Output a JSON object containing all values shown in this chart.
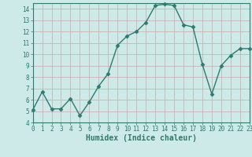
{
  "x": [
    0,
    1,
    2,
    3,
    4,
    5,
    6,
    7,
    8,
    9,
    10,
    11,
    12,
    13,
    14,
    15,
    16,
    17,
    18,
    19,
    20,
    21,
    22,
    23
  ],
  "y": [
    5.1,
    6.7,
    5.2,
    5.2,
    6.1,
    4.6,
    5.8,
    7.2,
    8.3,
    10.8,
    11.6,
    12.0,
    12.8,
    14.3,
    14.4,
    14.3,
    12.6,
    12.4,
    9.1,
    6.5,
    9.0,
    9.9,
    10.5,
    10.5
  ],
  "xlabel": "Humidex (Indice chaleur)",
  "line_color": "#2d7a6e",
  "bg_color": "#ceeae8",
  "grid_major_color": "#c8a8a8",
  "grid_minor_color": "#d8b8b8",
  "xlim": [
    0,
    23
  ],
  "ylim": [
    4,
    14.5
  ],
  "yticks": [
    4,
    5,
    6,
    7,
    8,
    9,
    10,
    11,
    12,
    13,
    14
  ],
  "xticks": [
    0,
    1,
    2,
    3,
    4,
    5,
    6,
    7,
    8,
    9,
    10,
    11,
    12,
    13,
    14,
    15,
    16,
    17,
    18,
    19,
    20,
    21,
    22,
    23
  ],
  "marker": "D",
  "marker_size": 2.5,
  "line_width": 1.0
}
